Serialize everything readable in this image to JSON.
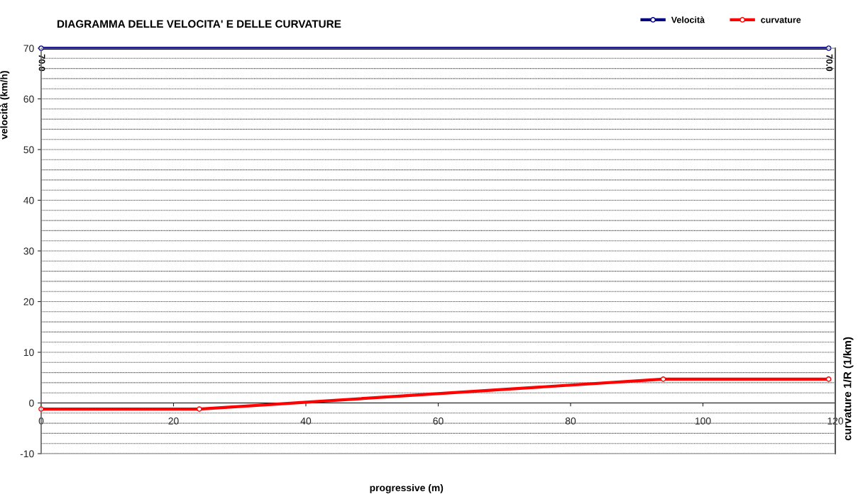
{
  "chart_data": {
    "type": "line",
    "title": "DIAGRAMMA DELLE VELOCITA' E DELLE CURVATURE",
    "xlabel": "progressive (m)",
    "ylabel": "velocità (km/h)",
    "y2label": "curvature 1/R (1/km)",
    "series": [
      {
        "name": "Velocità",
        "color": "#000080",
        "x": [
          0,
          119
        ],
        "values": [
          70,
          70
        ],
        "value_labels": [
          "70.0",
          "70.0"
        ]
      },
      {
        "name": "curvature",
        "color": "#ff0000",
        "x": [
          0,
          23.9,
          94,
          119
        ],
        "values": [
          -1.2,
          -1.2,
          4.7,
          4.7
        ]
      }
    ],
    "xlim": [
      0,
      120
    ],
    "xticks": [
      0,
      20,
      40,
      60,
      80,
      100,
      120
    ],
    "ylim": [
      -10,
      70
    ],
    "yticks": [
      -10,
      {
        "value": -8,
        "label": null
      },
      {
        "value": -6,
        "label": null
      },
      {
        "value": -4,
        "label": null
      },
      {
        "value": -2,
        "label": null
      },
      0,
      {
        "value": 2,
        "label": null
      },
      {
        "value": 4,
        "label": null
      },
      {
        "value": 6,
        "label": null
      },
      {
        "value": 8,
        "label": null
      },
      10,
      {
        "value": 12,
        "label": null
      },
      {
        "value": 14,
        "label": null
      },
      {
        "value": 16,
        "label": null
      },
      {
        "value": 18,
        "label": null
      },
      20,
      {
        "value": 22,
        "label": null
      },
      {
        "value": 24,
        "label": null
      },
      {
        "value": 26,
        "label": null
      },
      {
        "value": 28,
        "label": null
      },
      30,
      {
        "value": 32,
        "label": null
      },
      {
        "value": 34,
        "label": null
      },
      {
        "value": 36,
        "label": null
      },
      {
        "value": 38,
        "label": null
      },
      40,
      {
        "value": 42,
        "label": null
      },
      {
        "value": 44,
        "label": null
      },
      {
        "value": 46,
        "label": null
      },
      {
        "value": 48,
        "label": null
      },
      50,
      {
        "value": 52,
        "label": null
      },
      {
        "value": 54,
        "label": null
      },
      {
        "value": 56,
        "label": null
      },
      {
        "value": 58,
        "label": null
      },
      60,
      {
        "value": 62,
        "label": null
      },
      {
        "value": 64,
        "label": null
      },
      {
        "value": 66,
        "label": null
      },
      {
        "value": 68,
        "label": null
      },
      70
    ],
    "grid": "y",
    "legend": "top right",
    "marker": "circle",
    "line_style": "solid"
  }
}
